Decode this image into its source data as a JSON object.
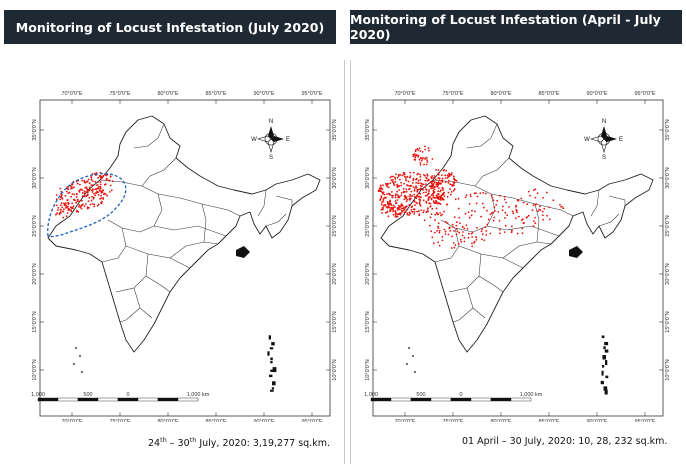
{
  "panels": [
    {
      "id": "july",
      "title": "Monitoring of Locust Infestation (July 2020)",
      "caption": {
        "lead": "24",
        "lead_sup": "th",
        "middle": " – 30",
        "middle_sup": "th",
        "rest": " July, 2020: 3,19,277 sq.km."
      },
      "shows_outline": true,
      "infestation_level": "regional"
    },
    {
      "id": "april_july",
      "title": "Monitoring of Locust Infestation (April - July 2020)",
      "caption": {
        "lead": "01 April – 30 July, 2020: 10, 28, 232 sq.km.",
        "lead_sup": "",
        "middle": "",
        "middle_sup": "",
        "rest": ""
      },
      "shows_outline": false,
      "infestation_level": "widespread"
    }
  ],
  "map": {
    "longitude_ticks": [
      "70°0'0\"E",
      "75°0'0\"E",
      "80°0'0\"E",
      "85°0'0\"E",
      "90°0'0\"E",
      "95°0'0\"E"
    ],
    "latitude_ticks": [
      "35°0'0\"N",
      "30°0'0\"N",
      "25°0'0\"N",
      "20°0'0\"N",
      "15°0'0\"N",
      "10°0'0\"N"
    ],
    "compass": {
      "north": "N",
      "south": "S",
      "east": "E",
      "west": "W"
    },
    "scale_labels": [
      "1,000",
      "500",
      "0",
      "1,000 km"
    ],
    "colors": {
      "infestation_points": "#e8120c",
      "outline": "#1f5fbf",
      "banner": "#1f2933"
    }
  }
}
